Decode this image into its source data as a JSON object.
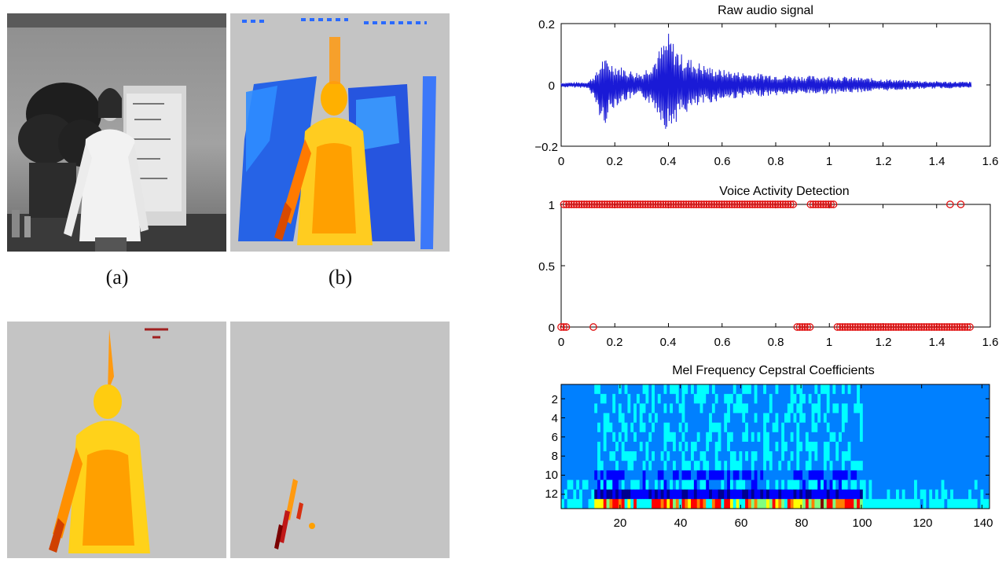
{
  "captions": {
    "a": "(a)",
    "b": "(b)"
  },
  "colors": {
    "axis": "#000000",
    "signal": "#1a1ad6",
    "vad_marker": "#e01010",
    "frame_bg": "#c4c4c4"
  },
  "chart_data": [
    {
      "type": "line",
      "title": "Raw audio signal",
      "xlim": [
        0,
        1.6
      ],
      "ylim": [
        -0.2,
        0.2
      ],
      "x_ticks": [
        0,
        0.2,
        0.4,
        0.6,
        0.8,
        1,
        1.2,
        1.4,
        1.6
      ],
      "x_tick_labels": [
        "0",
        "0.2",
        "0.4",
        "0.6",
        "0.8",
        "1",
        "1.2",
        "1.4",
        "1.6"
      ],
      "y_ticks": [
        -0.2,
        0,
        0.2
      ],
      "y_tick_labels": [
        "−0.2",
        "0",
        "0.2"
      ],
      "envelope": {
        "x": [
          0,
          0.1,
          0.14,
          0.15,
          0.2,
          0.25,
          0.3,
          0.35,
          0.38,
          0.4,
          0.42,
          0.45,
          0.5,
          0.55,
          0.6,
          0.7,
          0.8,
          0.9,
          1.0,
          1.1,
          1.2,
          1.3,
          1.4,
          1.53
        ],
        "upper": [
          0.008,
          0.01,
          0.05,
          0.09,
          0.07,
          0.05,
          0.04,
          0.09,
          0.14,
          0.17,
          0.14,
          0.1,
          0.08,
          0.06,
          0.05,
          0.04,
          0.035,
          0.03,
          0.03,
          0.025,
          0.02,
          0.015,
          0.012,
          0.01
        ],
        "lower": [
          -0.008,
          -0.01,
          -0.09,
          -0.15,
          -0.07,
          -0.05,
          -0.04,
          -0.08,
          -0.13,
          -0.16,
          -0.13,
          -0.1,
          -0.08,
          -0.06,
          -0.05,
          -0.04,
          -0.035,
          -0.03,
          -0.03,
          -0.025,
          -0.02,
          -0.015,
          -0.012,
          -0.01
        ]
      }
    },
    {
      "type": "scatter",
      "title": "Voice Activity Detection",
      "xlim": [
        0,
        1.6
      ],
      "ylim": [
        0,
        1
      ],
      "x_ticks": [
        0,
        0.2,
        0.4,
        0.6,
        0.8,
        1,
        1.2,
        1.4,
        1.6
      ],
      "x_tick_labels": [
        "0",
        "0.2",
        "0.4",
        "0.6",
        "0.8",
        "1",
        "1.2",
        "1.4",
        "1.6"
      ],
      "y_ticks": [
        0,
        0.5,
        1
      ],
      "y_tick_labels": [
        "0",
        "0.5",
        "1"
      ],
      "segments": [
        {
          "value": 1,
          "x_start": 0.01,
          "x_end": 0.87
        },
        {
          "value": 1,
          "x_start": 0.93,
          "x_end": 1.02
        },
        {
          "value": 1,
          "x_start": 1.45,
          "x_end": 1.45
        },
        {
          "value": 1,
          "x_start": 1.49,
          "x_end": 1.49
        },
        {
          "value": 0,
          "x_start": 0.0,
          "x_end": 0.02
        },
        {
          "value": 0,
          "x_start": 0.12,
          "x_end": 0.12
        },
        {
          "value": 0,
          "x_start": 0.88,
          "x_end": 0.93
        },
        {
          "value": 0,
          "x_start": 1.03,
          "x_end": 1.53
        }
      ],
      "marker_step": 0.0095
    },
    {
      "type": "heatmap",
      "title": "Mel Frequency Cepstral Coefficients",
      "x_ticks": [
        20,
        40,
        60,
        80,
        100,
        120,
        140
      ],
      "x_tick_labels": [
        "20",
        "40",
        "60",
        "80",
        "100",
        "120",
        "140"
      ],
      "y_ticks": [
        2,
        4,
        6,
        8,
        10,
        12
      ],
      "y_tick_labels": [
        "2",
        "4",
        "6",
        "8",
        "10",
        "12"
      ],
      "xlim": [
        0.5,
        142.5
      ],
      "ylim": [
        0.5,
        13.5
      ],
      "rows": 13,
      "cols": 142,
      "active_frames": [
        12,
        100
      ],
      "colorscale": [
        "#00008f",
        "#0000ff",
        "#0080ff",
        "#00ffff",
        "#80ff80",
        "#ffff00",
        "#ff8000",
        "#ff0000",
        "#800000"
      ]
    }
  ]
}
